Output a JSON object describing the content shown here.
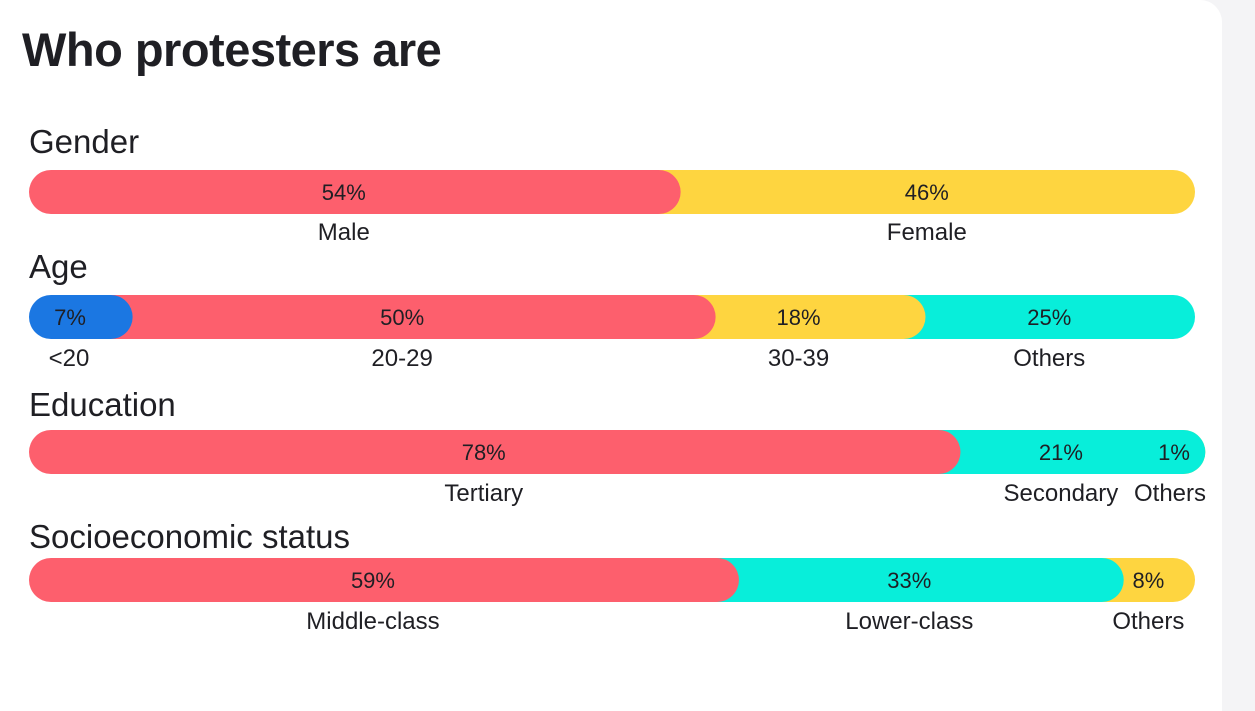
{
  "title": "Who protesters are",
  "colors": {
    "red": "#fd5f6d",
    "yellow": "#fed540",
    "teal": "#08eeda",
    "blue": "#1b77e2"
  },
  "chart_data": {
    "type": "bar",
    "orientation": "horizontal",
    "stacked": "100%",
    "unit": "%",
    "groups": [
      {
        "name": "Gender",
        "segments": [
          {
            "category": "Male",
            "value": 54,
            "label": "54%",
            "color": "red"
          },
          {
            "category": "Female",
            "value": 46,
            "label": "46%",
            "color": "yellow"
          }
        ]
      },
      {
        "name": "Age",
        "segments": [
          {
            "category": "<20",
            "value": 7,
            "label": "7%",
            "color": "blue"
          },
          {
            "category": "20-29",
            "value": 50,
            "label": "50%",
            "color": "red"
          },
          {
            "category": "30-39",
            "value": 18,
            "label": "18%",
            "color": "yellow"
          },
          {
            "category": "Others",
            "value": 25,
            "label": "25%",
            "color": "teal"
          }
        ]
      },
      {
        "name": "Education",
        "segments": [
          {
            "category": "Tertiary",
            "value": 78,
            "label": "78%",
            "color": "red"
          },
          {
            "category": "Secondary",
            "value": 21,
            "label": "21%",
            "color": "teal"
          },
          {
            "category": "Others",
            "value": 1,
            "label": "1%",
            "color": "yellow"
          }
        ]
      },
      {
        "name": "Socioeconomic status",
        "segments": [
          {
            "category": "Middle-class",
            "value": 59,
            "label": "59%",
            "color": "red"
          },
          {
            "category": "Lower-class",
            "value": 33,
            "label": "33%",
            "color": "teal"
          },
          {
            "category": "Others",
            "value": 8,
            "label": "8%",
            "color": "yellow"
          }
        ]
      }
    ]
  }
}
